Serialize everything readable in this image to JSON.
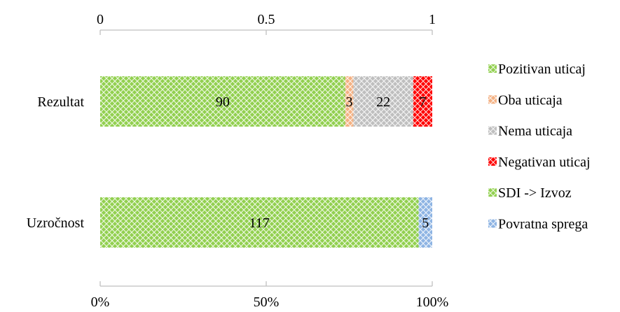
{
  "chart_data": {
    "type": "bar",
    "orientation": "horizontal",
    "stacked": "percent",
    "title": "",
    "xlabel": "",
    "ylabel": "",
    "top_axis": {
      "ticks": [
        "0",
        "0.5",
        "1"
      ],
      "values": [
        0,
        0.5,
        1
      ]
    },
    "bottom_axis": {
      "ticks": [
        "0%",
        "50%",
        "100%"
      ],
      "values": [
        0,
        0.5,
        1
      ]
    },
    "grid": false,
    "legend_position": "right",
    "categories": [
      "Rezultat",
      "Uzročnost"
    ],
    "series": [
      {
        "name": "Pozitivan uticaj",
        "color": "#92d050",
        "pattern": "crosshatch",
        "values": [
          90,
          0
        ]
      },
      {
        "name": "Oba uticaja",
        "color": "#f4b183",
        "pattern": "crosshatch",
        "values": [
          3,
          0
        ]
      },
      {
        "name": "Nema uticaja",
        "color": "#bfbfbf",
        "pattern": "crosshatch",
        "values": [
          22,
          0
        ]
      },
      {
        "name": "Negativan uticaj",
        "color": "#ff0000",
        "pattern": "crosshatch",
        "values": [
          7,
          0
        ]
      },
      {
        "name": "SDI -> Izvoz",
        "color": "#92d050",
        "pattern": "crosshatch",
        "values": [
          0,
          117
        ]
      },
      {
        "name": "Povratna sprega",
        "color": "#8eb4e3",
        "pattern": "crosshatch",
        "values": [
          0,
          5
        ]
      }
    ]
  }
}
